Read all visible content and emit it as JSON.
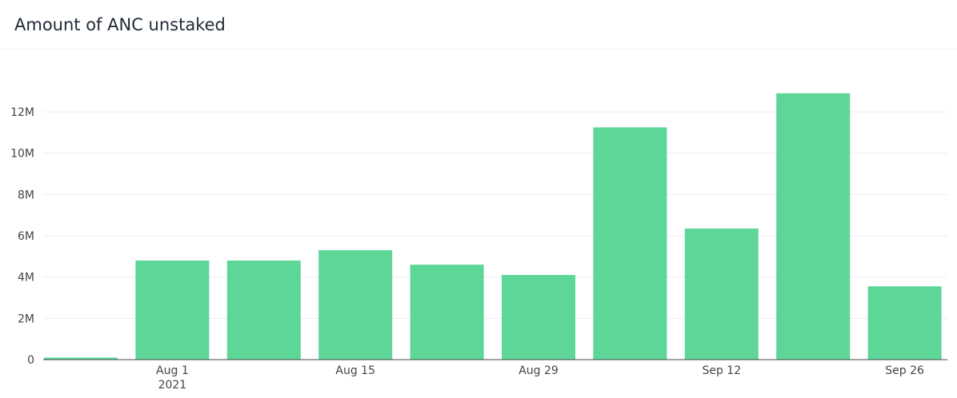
{
  "chart_data": {
    "type": "bar",
    "title": "Amount of ANC unstaked",
    "x_dates": [
      "2021-07-25",
      "2021-08-01",
      "2021-08-08",
      "2021-08-15",
      "2021-08-22",
      "2021-08-29",
      "2021-09-05",
      "2021-09-12",
      "2021-09-19",
      "2021-09-26"
    ],
    "values": [
      100000,
      4800000,
      4800000,
      5300000,
      4600000,
      4100000,
      11250000,
      6350000,
      12900000,
      3550000
    ],
    "x_ticks": [
      {
        "date": "2021-08-01",
        "label": "Aug 1",
        "sublabel": "2021"
      },
      {
        "date": "2021-08-15",
        "label": "Aug 15",
        "sublabel": ""
      },
      {
        "date": "2021-08-29",
        "label": "Aug 29",
        "sublabel": ""
      },
      {
        "date": "2021-09-12",
        "label": "Sep 12",
        "sublabel": ""
      },
      {
        "date": "2021-09-26",
        "label": "Sep 26",
        "sublabel": ""
      }
    ],
    "y_ticks": [
      {
        "value": 0,
        "label": "0"
      },
      {
        "value": 2000000,
        "label": "2M"
      },
      {
        "value": 4000000,
        "label": "4M"
      },
      {
        "value": 6000000,
        "label": "6M"
      },
      {
        "value": 8000000,
        "label": "8M"
      },
      {
        "value": 10000000,
        "label": "10M"
      },
      {
        "value": 12000000,
        "label": "12M"
      }
    ],
    "ylim": [
      0,
      14000000
    ],
    "xlabel": "",
    "ylabel": "",
    "grid": true,
    "bar_color": "#5dd698"
  }
}
